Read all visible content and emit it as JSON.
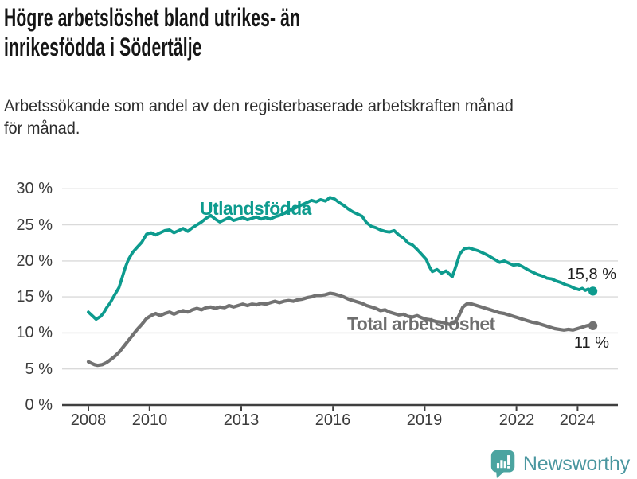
{
  "header": {
    "title_lines": [
      "Högre arbetslöshet bland utrikes- än",
      "inrikesfödda i Södertälje"
    ],
    "subtitle_lines": [
      "Arbetssökande som andel av den registerbaserade arbetskraften månad",
      "för månad."
    ]
  },
  "footer": {
    "brand": "Newsworthy",
    "logo_icon": "bar-chart-speech-bubble-icon",
    "brand_color": "#4b97a0",
    "icon_color": "#4ba4a0"
  },
  "colors": {
    "foreign_born_line": "#0d9b8e",
    "total_line": "#727272",
    "gridline": "#dadada",
    "axis": "#3f3f3f",
    "tick_text": "#3b3b3b"
  },
  "chart_data": {
    "type": "line",
    "title": "Högre arbetslöshet bland utrikes- än inrikesfödda i Södertälje",
    "subtitle": "Arbetssökande som andel av den registerbaserade arbetskraften månad för månad.",
    "legend_position": "inline-labels",
    "grid": true,
    "x_axis": {
      "tick_years": [
        2008,
        2010,
        2013,
        2016,
        2019,
        2022,
        2024
      ],
      "tick_labels": [
        "2008",
        "2010",
        "2013",
        "2016",
        "2019",
        "2022",
        "2024"
      ],
      "range_years": [
        2007.15,
        2025.3
      ]
    },
    "y_axis": {
      "tick_values": [
        0,
        5,
        10,
        15,
        20,
        25,
        30
      ],
      "tick_labels": [
        "0 %",
        "5 %",
        "10 %",
        "15 %",
        "20 %",
        "25 %",
        "30 %"
      ],
      "range": [
        0,
        30
      ]
    },
    "series": [
      {
        "name": "Utlandsfödda",
        "color": "#0d9b8e",
        "end_label": "15,8 %",
        "end_value": 15.8,
        "points": [
          [
            2008.0,
            12.9
          ],
          [
            2008.1,
            12.5
          ],
          [
            2008.25,
            11.9
          ],
          [
            2008.4,
            12.3
          ],
          [
            2008.5,
            12.8
          ],
          [
            2008.6,
            13.5
          ],
          [
            2008.7,
            14.1
          ],
          [
            2008.85,
            15.2
          ],
          [
            2009.0,
            16.3
          ],
          [
            2009.1,
            17.6
          ],
          [
            2009.2,
            19.0
          ],
          [
            2009.3,
            20.1
          ],
          [
            2009.45,
            21.2
          ],
          [
            2009.6,
            21.9
          ],
          [
            2009.75,
            22.6
          ],
          [
            2009.9,
            23.7
          ],
          [
            2010.05,
            23.9
          ],
          [
            2010.2,
            23.6
          ],
          [
            2010.35,
            23.9
          ],
          [
            2010.5,
            24.2
          ],
          [
            2010.65,
            24.3
          ],
          [
            2010.8,
            23.9
          ],
          [
            2010.95,
            24.2
          ],
          [
            2011.1,
            24.5
          ],
          [
            2011.25,
            24.1
          ],
          [
            2011.4,
            24.6
          ],
          [
            2011.55,
            25.0
          ],
          [
            2011.7,
            25.4
          ],
          [
            2011.85,
            25.9
          ],
          [
            2012.0,
            26.3
          ],
          [
            2012.15,
            25.8
          ],
          [
            2012.3,
            25.4
          ],
          [
            2012.45,
            25.7
          ],
          [
            2012.6,
            26.0
          ],
          [
            2012.75,
            25.6
          ],
          [
            2012.9,
            25.8
          ],
          [
            2013.05,
            26.0
          ],
          [
            2013.2,
            25.7
          ],
          [
            2013.35,
            25.9
          ],
          [
            2013.5,
            26.1
          ],
          [
            2013.65,
            25.8
          ],
          [
            2013.8,
            26.0
          ],
          [
            2013.95,
            25.8
          ],
          [
            2014.1,
            26.1
          ],
          [
            2014.25,
            26.3
          ],
          [
            2014.4,
            26.6
          ],
          [
            2014.55,
            27.0
          ],
          [
            2014.7,
            27.2
          ],
          [
            2014.85,
            27.5
          ],
          [
            2015.0,
            27.8
          ],
          [
            2015.15,
            28.1
          ],
          [
            2015.3,
            28.4
          ],
          [
            2015.45,
            28.2
          ],
          [
            2015.6,
            28.5
          ],
          [
            2015.75,
            28.3
          ],
          [
            2015.9,
            28.8
          ],
          [
            2016.05,
            28.6
          ],
          [
            2016.2,
            28.1
          ],
          [
            2016.35,
            27.7
          ],
          [
            2016.5,
            27.2
          ],
          [
            2016.65,
            26.8
          ],
          [
            2016.8,
            26.5
          ],
          [
            2016.95,
            26.2
          ],
          [
            2017.1,
            25.3
          ],
          [
            2017.25,
            24.8
          ],
          [
            2017.4,
            24.6
          ],
          [
            2017.55,
            24.3
          ],
          [
            2017.7,
            24.1
          ],
          [
            2017.85,
            24.0
          ],
          [
            2018.0,
            24.2
          ],
          [
            2018.15,
            23.6
          ],
          [
            2018.3,
            23.2
          ],
          [
            2018.45,
            22.5
          ],
          [
            2018.6,
            22.2
          ],
          [
            2018.75,
            21.6
          ],
          [
            2018.9,
            20.9
          ],
          [
            2019.05,
            20.2
          ],
          [
            2019.15,
            19.2
          ],
          [
            2019.25,
            18.5
          ],
          [
            2019.4,
            18.8
          ],
          [
            2019.55,
            18.3
          ],
          [
            2019.7,
            18.6
          ],
          [
            2019.8,
            18.2
          ],
          [
            2019.9,
            17.8
          ],
          [
            2020.0,
            19.0
          ],
          [
            2020.15,
            21.0
          ],
          [
            2020.3,
            21.7
          ],
          [
            2020.45,
            21.8
          ],
          [
            2020.6,
            21.6
          ],
          [
            2020.75,
            21.4
          ],
          [
            2020.9,
            21.1
          ],
          [
            2021.05,
            20.8
          ],
          [
            2021.25,
            20.3
          ],
          [
            2021.45,
            19.8
          ],
          [
            2021.6,
            20.0
          ],
          [
            2021.75,
            19.7
          ],
          [
            2021.9,
            19.4
          ],
          [
            2022.05,
            19.5
          ],
          [
            2022.2,
            19.2
          ],
          [
            2022.4,
            18.7
          ],
          [
            2022.55,
            18.4
          ],
          [
            2022.7,
            18.1
          ],
          [
            2022.85,
            17.9
          ],
          [
            2023.0,
            17.6
          ],
          [
            2023.15,
            17.5
          ],
          [
            2023.3,
            17.2
          ],
          [
            2023.45,
            17.0
          ],
          [
            2023.6,
            16.7
          ],
          [
            2023.75,
            16.5
          ],
          [
            2023.9,
            16.2
          ],
          [
            2024.05,
            16.0
          ],
          [
            2024.15,
            16.2
          ],
          [
            2024.25,
            15.9
          ],
          [
            2024.35,
            16.1
          ],
          [
            2024.5,
            15.8
          ]
        ]
      },
      {
        "name": "Total arbetslöshet",
        "color": "#727272",
        "end_label": "11 %",
        "end_value": 11.0,
        "points": [
          [
            2008.0,
            6.0
          ],
          [
            2008.1,
            5.8
          ],
          [
            2008.2,
            5.6
          ],
          [
            2008.3,
            5.5
          ],
          [
            2008.45,
            5.6
          ],
          [
            2008.6,
            5.9
          ],
          [
            2008.7,
            6.2
          ],
          [
            2008.85,
            6.7
          ],
          [
            2009.0,
            7.3
          ],
          [
            2009.15,
            8.1
          ],
          [
            2009.3,
            8.9
          ],
          [
            2009.45,
            9.7
          ],
          [
            2009.6,
            10.5
          ],
          [
            2009.75,
            11.2
          ],
          [
            2009.9,
            12.0
          ],
          [
            2010.05,
            12.4
          ],
          [
            2010.2,
            12.7
          ],
          [
            2010.35,
            12.4
          ],
          [
            2010.5,
            12.7
          ],
          [
            2010.65,
            12.9
          ],
          [
            2010.8,
            12.6
          ],
          [
            2010.95,
            12.9
          ],
          [
            2011.1,
            13.1
          ],
          [
            2011.25,
            12.9
          ],
          [
            2011.4,
            13.2
          ],
          [
            2011.55,
            13.4
          ],
          [
            2011.7,
            13.2
          ],
          [
            2011.85,
            13.5
          ],
          [
            2012.0,
            13.6
          ],
          [
            2012.15,
            13.4
          ],
          [
            2012.3,
            13.6
          ],
          [
            2012.45,
            13.5
          ],
          [
            2012.6,
            13.8
          ],
          [
            2012.75,
            13.6
          ],
          [
            2012.9,
            13.8
          ],
          [
            2013.05,
            14.0
          ],
          [
            2013.2,
            13.8
          ],
          [
            2013.35,
            14.0
          ],
          [
            2013.5,
            13.9
          ],
          [
            2013.65,
            14.1
          ],
          [
            2013.8,
            14.0
          ],
          [
            2013.95,
            14.2
          ],
          [
            2014.1,
            14.4
          ],
          [
            2014.25,
            14.2
          ],
          [
            2014.4,
            14.4
          ],
          [
            2014.55,
            14.5
          ],
          [
            2014.7,
            14.4
          ],
          [
            2014.85,
            14.6
          ],
          [
            2015.0,
            14.7
          ],
          [
            2015.15,
            14.9
          ],
          [
            2015.3,
            15.0
          ],
          [
            2015.45,
            15.2
          ],
          [
            2015.6,
            15.2
          ],
          [
            2015.75,
            15.3
          ],
          [
            2015.9,
            15.5
          ],
          [
            2016.05,
            15.4
          ],
          [
            2016.2,
            15.2
          ],
          [
            2016.35,
            15.0
          ],
          [
            2016.5,
            14.7
          ],
          [
            2016.65,
            14.5
          ],
          [
            2016.8,
            14.3
          ],
          [
            2016.95,
            14.1
          ],
          [
            2017.1,
            13.8
          ],
          [
            2017.25,
            13.6
          ],
          [
            2017.4,
            13.4
          ],
          [
            2017.55,
            13.1
          ],
          [
            2017.7,
            13.2
          ],
          [
            2017.85,
            12.9
          ],
          [
            2018.0,
            12.7
          ],
          [
            2018.15,
            12.5
          ],
          [
            2018.3,
            12.6
          ],
          [
            2018.45,
            12.3
          ],
          [
            2018.6,
            12.2
          ],
          [
            2018.75,
            12.4
          ],
          [
            2018.9,
            12.1
          ],
          [
            2019.05,
            11.9
          ],
          [
            2019.2,
            11.8
          ],
          [
            2019.35,
            11.6
          ],
          [
            2019.5,
            11.5
          ],
          [
            2019.65,
            11.4
          ],
          [
            2019.8,
            11.2
          ],
          [
            2019.95,
            11.3
          ],
          [
            2020.1,
            12.2
          ],
          [
            2020.25,
            13.6
          ],
          [
            2020.4,
            14.1
          ],
          [
            2020.55,
            14.0
          ],
          [
            2020.7,
            13.8
          ],
          [
            2020.85,
            13.6
          ],
          [
            2021.0,
            13.4
          ],
          [
            2021.15,
            13.2
          ],
          [
            2021.3,
            13.0
          ],
          [
            2021.45,
            12.8
          ],
          [
            2021.6,
            12.7
          ],
          [
            2021.75,
            12.5
          ],
          [
            2021.9,
            12.3
          ],
          [
            2022.05,
            12.1
          ],
          [
            2022.2,
            11.9
          ],
          [
            2022.35,
            11.7
          ],
          [
            2022.5,
            11.5
          ],
          [
            2022.65,
            11.4
          ],
          [
            2022.8,
            11.2
          ],
          [
            2022.95,
            11.0
          ],
          [
            2023.1,
            10.8
          ],
          [
            2023.25,
            10.6
          ],
          [
            2023.4,
            10.5
          ],
          [
            2023.55,
            10.4
          ],
          [
            2023.7,
            10.5
          ],
          [
            2023.85,
            10.4
          ],
          [
            2024.0,
            10.6
          ],
          [
            2024.15,
            10.8
          ],
          [
            2024.3,
            11.0
          ],
          [
            2024.4,
            11.1
          ],
          [
            2024.5,
            11.0
          ]
        ]
      }
    ]
  }
}
